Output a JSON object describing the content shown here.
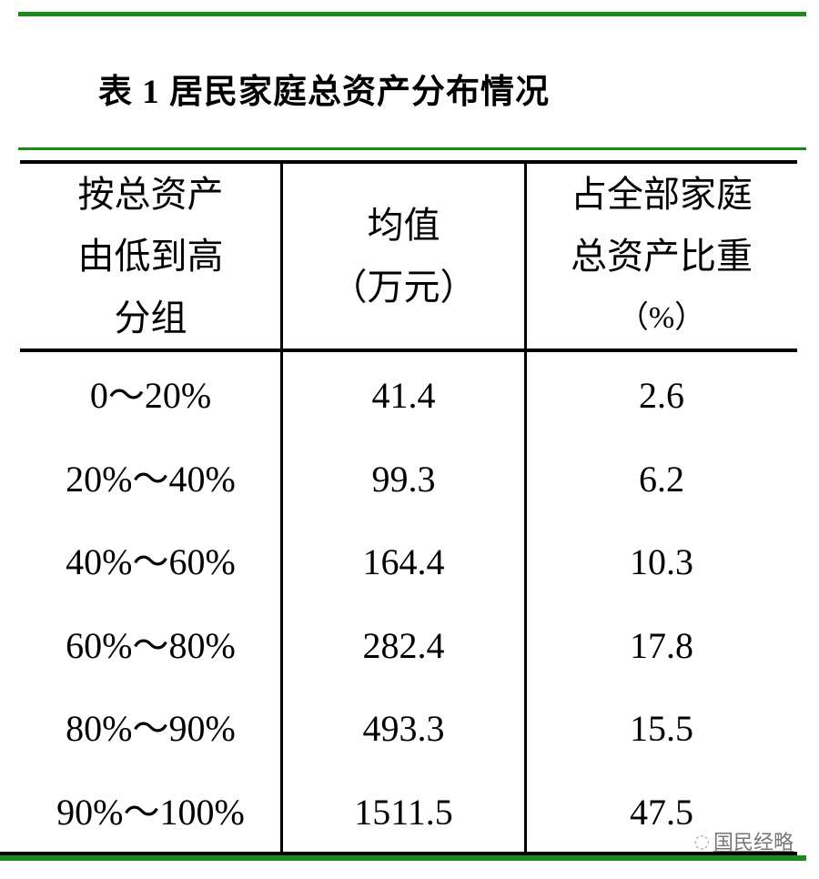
{
  "title": "表 1  居民家庭总资产分布情况",
  "headers": [
    [
      "按总资产",
      "由低到高",
      "分组"
    ],
    [
      "均值",
      "（万元）"
    ],
    [
      "占全部家庭",
      "总资产比重",
      "（%）"
    ]
  ],
  "rows": [
    {
      "group": "0～20%",
      "mean": "41.4",
      "share": "2.6"
    },
    {
      "group": "20%～40%",
      "mean": "99.3",
      "share": "6.2"
    },
    {
      "group": "40%～60%",
      "mean": "164.4",
      "share": "10.3"
    },
    {
      "group": "60%～80%",
      "mean": "282.4",
      "share": "17.8"
    },
    {
      "group": "80%～90%",
      "mean": "493.3",
      "share": "15.5"
    },
    {
      "group": "90%～100%",
      "mean": "1511.5",
      "share": "47.5"
    }
  ],
  "watermark": "国民经略",
  "colors": {
    "rule_green": "#1a8a1a",
    "rule_black": "#000000"
  }
}
